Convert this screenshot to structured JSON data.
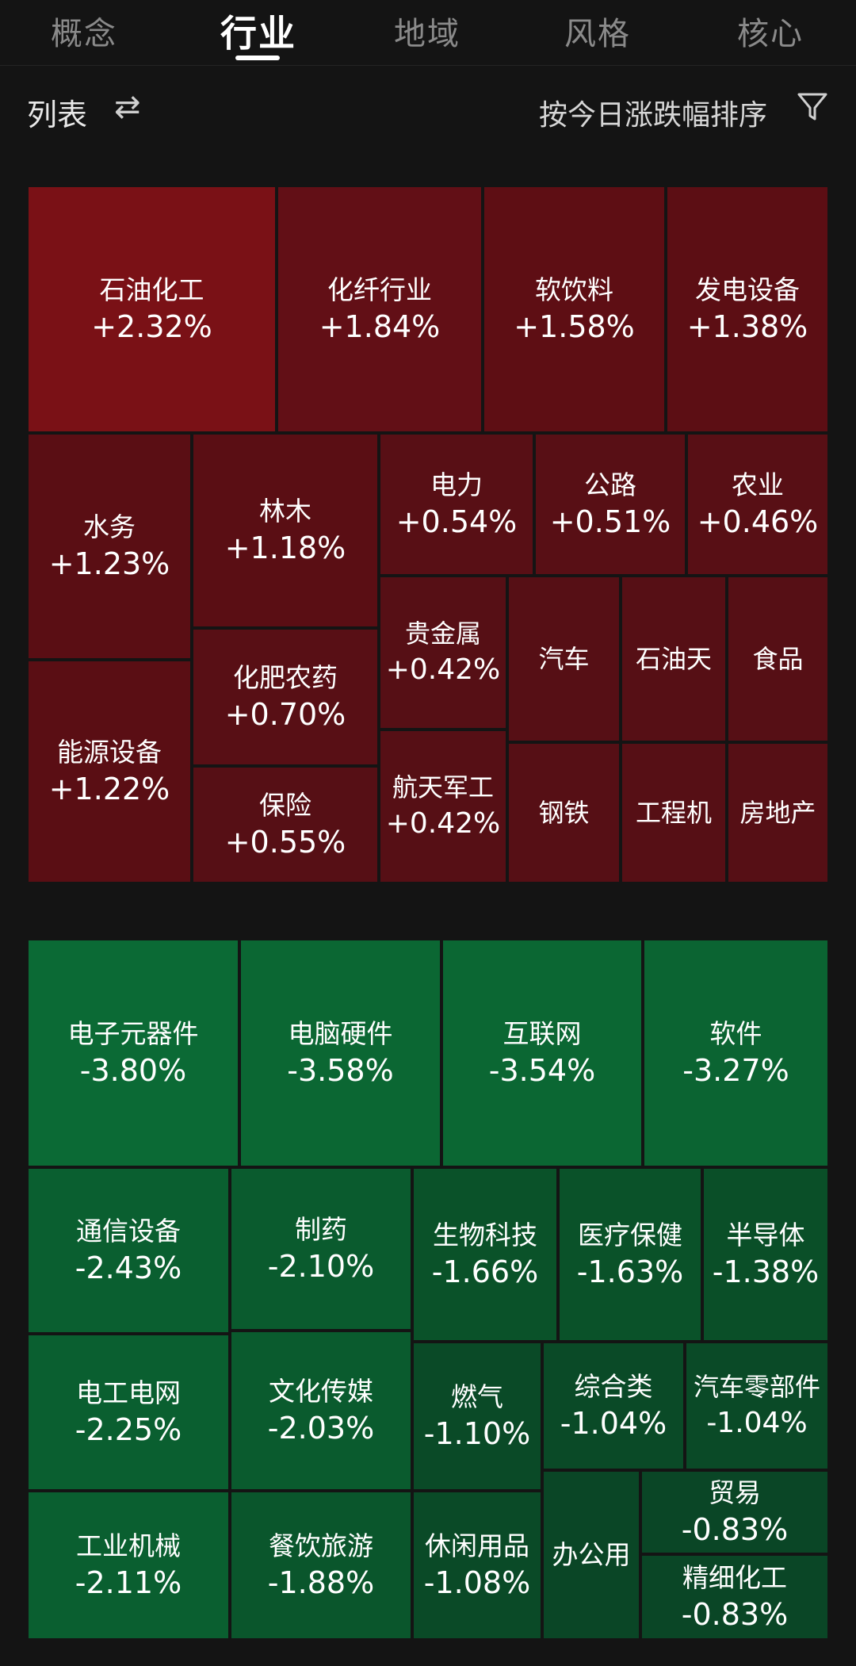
{
  "tabs": [
    {
      "label": "概念",
      "active": false
    },
    {
      "label": "行业",
      "active": true
    },
    {
      "label": "地域",
      "active": false
    },
    {
      "label": "风格",
      "active": false
    },
    {
      "label": "核心",
      "active": false
    }
  ],
  "toolbar": {
    "list_label": "列表",
    "swap_icon": "swap-arrows-icon",
    "sort_label": "按今日涨跌幅排序",
    "filter_icon": "filter-funnel-icon"
  },
  "colors": {
    "background": "#141414",
    "gain_strong": "#7a1116",
    "gain_medium": "#5e0e14",
    "gain_light": "#580f15",
    "loss_strong": "#0b6a35",
    "loss_medium": "#0a5b2e",
    "loss_light": "#0a4a27"
  },
  "gainers": [
    {
      "name": "石油化工",
      "change": "+2.32%"
    },
    {
      "name": "化纤行业",
      "change": "+1.84%"
    },
    {
      "name": "软饮料",
      "change": "+1.58%"
    },
    {
      "name": "发电设备",
      "change": "+1.38%"
    },
    {
      "name": "水务",
      "change": "+1.23%"
    },
    {
      "name": "林木",
      "change": "+1.18%"
    },
    {
      "name": "电力",
      "change": "+0.54%"
    },
    {
      "name": "公路",
      "change": "+0.51%"
    },
    {
      "name": "农业",
      "change": "+0.46%"
    },
    {
      "name": "能源设备",
      "change": "+1.22%"
    },
    {
      "name": "化肥农药",
      "change": "+0.70%"
    },
    {
      "name": "贵金属",
      "change": "+0.42%"
    },
    {
      "name": "汽车",
      "change": ""
    },
    {
      "name": "石油天",
      "change": ""
    },
    {
      "name": "食品",
      "change": ""
    },
    {
      "name": "保险",
      "change": "+0.55%"
    },
    {
      "name": "航天军工",
      "change": "+0.42%"
    },
    {
      "name": "钢铁",
      "change": ""
    },
    {
      "name": "工程机",
      "change": ""
    },
    {
      "name": "房地产",
      "change": ""
    }
  ],
  "losers": [
    {
      "name": "电子元器件",
      "change": "-3.80%"
    },
    {
      "name": "电脑硬件",
      "change": "-3.58%"
    },
    {
      "name": "互联网",
      "change": "-3.54%"
    },
    {
      "name": "软件",
      "change": "-3.27%"
    },
    {
      "name": "通信设备",
      "change": "-2.43%"
    },
    {
      "name": "制药",
      "change": "-2.10%"
    },
    {
      "name": "生物科技",
      "change": "-1.66%"
    },
    {
      "name": "医疗保健",
      "change": "-1.63%"
    },
    {
      "name": "半导体",
      "change": "-1.38%"
    },
    {
      "name": "电工电网",
      "change": "-2.25%"
    },
    {
      "name": "文化传媒",
      "change": "-2.03%"
    },
    {
      "name": "燃气",
      "change": "-1.10%"
    },
    {
      "name": "综合类",
      "change": "-1.04%"
    },
    {
      "name": "汽车零部件",
      "change": "-1.04%"
    },
    {
      "name": "工业机械",
      "change": "-2.11%"
    },
    {
      "name": "餐饮旅游",
      "change": "-1.88%"
    },
    {
      "name": "休闲用品",
      "change": "-1.08%"
    },
    {
      "name": "办公用",
      "change": ""
    },
    {
      "name": "贸易",
      "change": "-0.83%"
    },
    {
      "name": "精细化工",
      "change": "-0.83%"
    }
  ]
}
